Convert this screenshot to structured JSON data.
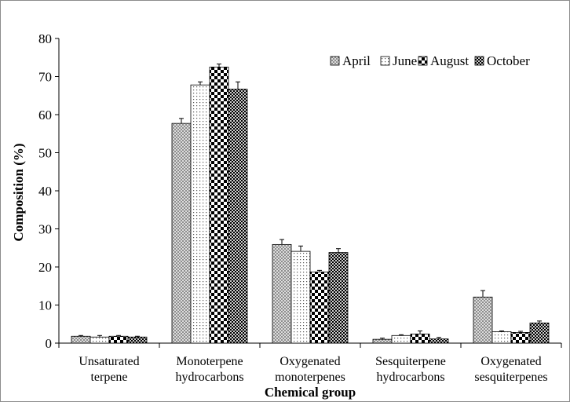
{
  "chart_data": {
    "type": "bar",
    "xlabel": "Chemical group",
    "ylabel": "Composition  (%)",
    "ylim": [
      0,
      80
    ],
    "yticks": [
      0,
      10,
      20,
      30,
      40,
      50,
      60,
      70,
      80
    ],
    "grid": false,
    "legend_position": "top-right",
    "categories": [
      [
        "Unsaturated",
        "terpene"
      ],
      [
        "Monoterpene",
        "hydrocarbons"
      ],
      [
        "Oxygenated",
        "monoterpenes"
      ],
      [
        "Sesquiterpene",
        "hydrocarbons"
      ],
      [
        "Oxygenated",
        "sesquiterpenes"
      ]
    ],
    "series": [
      {
        "name": "April",
        "pattern": "crosshatch",
        "values": [
          1.8,
          57.7,
          25.9,
          1.0,
          12.1
        ],
        "errors": [
          0.2,
          1.3,
          1.3,
          0.3,
          1.7
        ]
      },
      {
        "name": "June",
        "pattern": "dots",
        "values": [
          1.6,
          67.8,
          24.1,
          2.0,
          3.0
        ],
        "errors": [
          0.4,
          0.8,
          1.4,
          0.2,
          0.2
        ]
      },
      {
        "name": "August",
        "pattern": "checker",
        "values": [
          1.8,
          72.5,
          18.7,
          2.4,
          2.8
        ],
        "errors": [
          0.2,
          0.8,
          0.4,
          0.8,
          0.3
        ]
      },
      {
        "name": "October",
        "pattern": "denseCheck",
        "values": [
          1.6,
          66.7,
          23.8,
          1.1,
          5.3
        ],
        "errors": [
          0.2,
          1.9,
          1.0,
          0.4,
          0.5
        ]
      }
    ]
  }
}
